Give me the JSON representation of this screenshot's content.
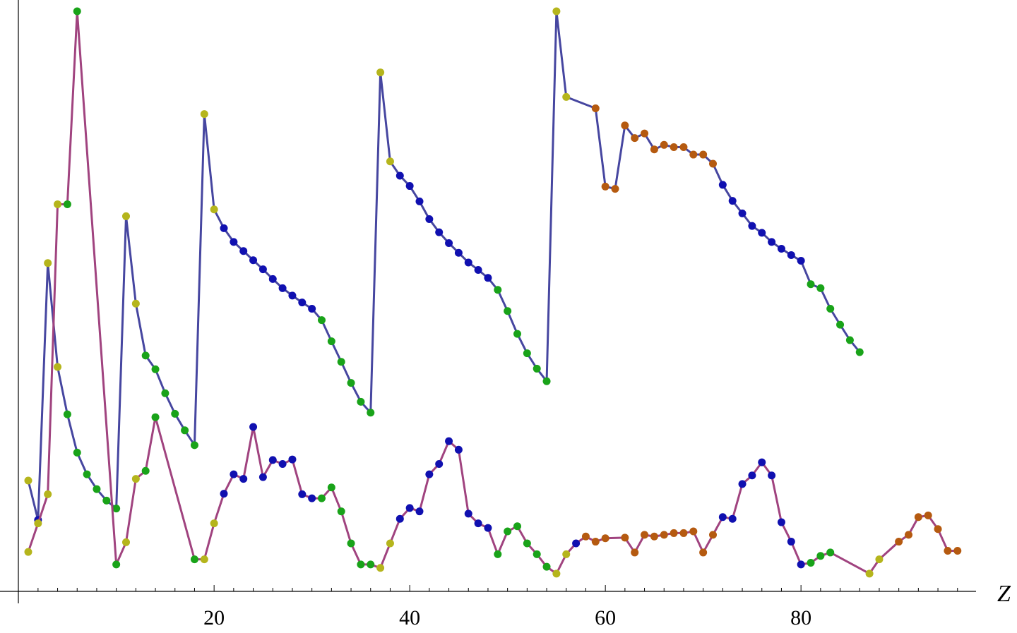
{
  "chart_data": {
    "type": "line",
    "title": "",
    "xlabel": "Z",
    "ylabel": "",
    "xlim": [
      0,
      98
    ],
    "ylim": [
      0,
      1
    ],
    "x_ticks_labeled": [
      20,
      40,
      60,
      80
    ],
    "x_ticks_labels": [
      "20",
      "40",
      "60",
      "80"
    ],
    "x_minor_step": 2,
    "grid": false,
    "legend": "none",
    "colors": {
      "s-block": "#b5b51c",
      "p-block": "#19a319",
      "d-block": "#1010b0",
      "f-block": "#b55a10"
    },
    "series": [
      {
        "line_color": "#4646a0",
        "points": [
          {
            "x": 1,
            "y": 0.178,
            "block": "s-block"
          },
          {
            "x": 2,
            "y": 0.109,
            "block": "d-block"
          },
          {
            "x": 3,
            "y": 0.559,
            "block": "s-block"
          },
          {
            "x": 4,
            "y": 0.377,
            "block": "s-block"
          },
          {
            "x": 5,
            "y": 0.294,
            "block": "p-block"
          },
          {
            "x": 6,
            "y": 0.227,
            "block": "p-block"
          },
          {
            "x": 7,
            "y": 0.189,
            "block": "p-block"
          },
          {
            "x": 8,
            "y": 0.163,
            "block": "p-block"
          },
          {
            "x": 9,
            "y": 0.143,
            "block": "p-block"
          },
          {
            "x": 10,
            "y": 0.129,
            "block": "p-block"
          },
          {
            "x": 11,
            "y": 0.641,
            "block": "s-block"
          },
          {
            "x": 12,
            "y": 0.488,
            "block": "s-block"
          },
          {
            "x": 13,
            "y": 0.397,
            "block": "p-block"
          },
          {
            "x": 14,
            "y": 0.373,
            "block": "p-block"
          },
          {
            "x": 15,
            "y": 0.331,
            "block": "p-block"
          },
          {
            "x": 16,
            "y": 0.295,
            "block": "p-block"
          },
          {
            "x": 17,
            "y": 0.266,
            "block": "p-block"
          },
          {
            "x": 18,
            "y": 0.24,
            "block": "p-block"
          },
          {
            "x": 19,
            "y": 0.82,
            "block": "s-block"
          },
          {
            "x": 20,
            "y": 0.653,
            "block": "s-block"
          },
          {
            "x": 21,
            "y": 0.62,
            "block": "d-block"
          },
          {
            "x": 22,
            "y": 0.596,
            "block": "d-block"
          },
          {
            "x": 23,
            "y": 0.58,
            "block": "d-block"
          },
          {
            "x": 24,
            "y": 0.564,
            "block": "d-block"
          },
          {
            "x": 25,
            "y": 0.548,
            "block": "d-block"
          },
          {
            "x": 26,
            "y": 0.531,
            "block": "d-block"
          },
          {
            "x": 27,
            "y": 0.515,
            "block": "d-block"
          },
          {
            "x": 28,
            "y": 0.502,
            "block": "d-block"
          },
          {
            "x": 29,
            "y": 0.49,
            "block": "d-block"
          },
          {
            "x": 30,
            "y": 0.479,
            "block": "d-block"
          },
          {
            "x": 31,
            "y": 0.459,
            "block": "p-block"
          },
          {
            "x": 32,
            "y": 0.422,
            "block": "p-block"
          },
          {
            "x": 33,
            "y": 0.386,
            "block": "p-block"
          },
          {
            "x": 34,
            "y": 0.349,
            "block": "p-block"
          },
          {
            "x": 35,
            "y": 0.316,
            "block": "p-block"
          },
          {
            "x": 36,
            "y": 0.297,
            "block": "p-block"
          },
          {
            "x": 37,
            "y": 0.893,
            "block": "s-block"
          },
          {
            "x": 38,
            "y": 0.737,
            "block": "s-block"
          },
          {
            "x": 39,
            "y": 0.712,
            "block": "d-block"
          },
          {
            "x": 40,
            "y": 0.694,
            "block": "d-block"
          },
          {
            "x": 41,
            "y": 0.667,
            "block": "d-block"
          },
          {
            "x": 42,
            "y": 0.636,
            "block": "d-block"
          },
          {
            "x": 43,
            "y": 0.613,
            "block": "d-block"
          },
          {
            "x": 44,
            "y": 0.594,
            "block": "d-block"
          },
          {
            "x": 45,
            "y": 0.577,
            "block": "d-block"
          },
          {
            "x": 46,
            "y": 0.56,
            "block": "d-block"
          },
          {
            "x": 47,
            "y": 0.547,
            "block": "d-block"
          },
          {
            "x": 48,
            "y": 0.533,
            "block": "d-block"
          },
          {
            "x": 49,
            "y": 0.512,
            "block": "p-block"
          },
          {
            "x": 50,
            "y": 0.475,
            "block": "p-block"
          },
          {
            "x": 51,
            "y": 0.435,
            "block": "p-block"
          },
          {
            "x": 52,
            "y": 0.401,
            "block": "p-block"
          },
          {
            "x": 53,
            "y": 0.374,
            "block": "p-block"
          },
          {
            "x": 54,
            "y": 0.352,
            "block": "p-block"
          },
          {
            "x": 55,
            "y": 1.0,
            "block": "s-block"
          },
          {
            "x": 56,
            "y": 0.85,
            "block": "s-block"
          },
          {
            "x": 59,
            "y": 0.83,
            "block": "f-block"
          },
          {
            "x": 60,
            "y": 0.693,
            "block": "f-block"
          },
          {
            "x": 61,
            "y": 0.689,
            "block": "f-block"
          },
          {
            "x": 62,
            "y": 0.8,
            "block": "f-block"
          },
          {
            "x": 63,
            "y": 0.778,
            "block": "f-block"
          },
          {
            "x": 64,
            "y": 0.786,
            "block": "f-block"
          },
          {
            "x": 65,
            "y": 0.758,
            "block": "f-block"
          },
          {
            "x": 66,
            "y": 0.766,
            "block": "f-block"
          },
          {
            "x": 67,
            "y": 0.762,
            "block": "f-block"
          },
          {
            "x": 68,
            "y": 0.762,
            "block": "f-block"
          },
          {
            "x": 69,
            "y": 0.749,
            "block": "f-block"
          },
          {
            "x": 70,
            "y": 0.749,
            "block": "f-block"
          },
          {
            "x": 71,
            "y": 0.733,
            "block": "f-block"
          },
          {
            "x": 72,
            "y": 0.696,
            "block": "d-block"
          },
          {
            "x": 73,
            "y": 0.668,
            "block": "d-block"
          },
          {
            "x": 74,
            "y": 0.646,
            "block": "d-block"
          },
          {
            "x": 75,
            "y": 0.624,
            "block": "d-block"
          },
          {
            "x": 76,
            "y": 0.612,
            "block": "d-block"
          },
          {
            "x": 77,
            "y": 0.596,
            "block": "d-block"
          },
          {
            "x": 78,
            "y": 0.584,
            "block": "d-block"
          },
          {
            "x": 79,
            "y": 0.573,
            "block": "d-block"
          },
          {
            "x": 80,
            "y": 0.563,
            "block": "d-block"
          },
          {
            "x": 81,
            "y": 0.522,
            "block": "p-block"
          },
          {
            "x": 82,
            "y": 0.515,
            "block": "p-block"
          },
          {
            "x": 83,
            "y": 0.479,
            "block": "p-block"
          },
          {
            "x": 84,
            "y": 0.451,
            "block": "p-block"
          },
          {
            "x": 85,
            "y": 0.424,
            "block": "p-block"
          },
          {
            "x": 86,
            "y": 0.403,
            "block": "p-block"
          }
        ]
      },
      {
        "line_color": "#a0437f",
        "points": [
          {
            "x": 1,
            "y": 0.053,
            "block": "s-block"
          },
          {
            "x": 2,
            "y": 0.103,
            "block": "s-block"
          },
          {
            "x": 3,
            "y": 0.154,
            "block": "s-block"
          },
          {
            "x": 4,
            "y": 0.662,
            "block": "s-block"
          },
          {
            "x": 5,
            "y": 0.662,
            "block": "p-block"
          },
          {
            "x": 6,
            "y": 1.0,
            "block": "p-block"
          },
          {
            "x": 10,
            "y": 0.031,
            "block": "p-block"
          },
          {
            "x": 11,
            "y": 0.07,
            "block": "s-block"
          },
          {
            "x": 12,
            "y": 0.181,
            "block": "s-block"
          },
          {
            "x": 13,
            "y": 0.195,
            "block": "p-block"
          },
          {
            "x": 14,
            "y": 0.289,
            "block": "p-block"
          },
          {
            "x": 18,
            "y": 0.04,
            "block": "p-block"
          },
          {
            "x": 19,
            "y": 0.04,
            "block": "s-block"
          },
          {
            "x": 20,
            "y": 0.103,
            "block": "s-block"
          },
          {
            "x": 21,
            "y": 0.155,
            "block": "d-block"
          },
          {
            "x": 22,
            "y": 0.189,
            "block": "d-block"
          },
          {
            "x": 23,
            "y": 0.181,
            "block": "d-block"
          },
          {
            "x": 24,
            "y": 0.272,
            "block": "d-block"
          },
          {
            "x": 25,
            "y": 0.184,
            "block": "d-block"
          },
          {
            "x": 26,
            "y": 0.214,
            "block": "d-block"
          },
          {
            "x": 27,
            "y": 0.207,
            "block": "d-block"
          },
          {
            "x": 28,
            "y": 0.215,
            "block": "d-block"
          },
          {
            "x": 29,
            "y": 0.154,
            "block": "d-block"
          },
          {
            "x": 30,
            "y": 0.147,
            "block": "d-block"
          },
          {
            "x": 31,
            "y": 0.147,
            "block": "p-block"
          },
          {
            "x": 32,
            "y": 0.166,
            "block": "p-block"
          },
          {
            "x": 33,
            "y": 0.124,
            "block": "p-block"
          },
          {
            "x": 34,
            "y": 0.068,
            "block": "p-block"
          },
          {
            "x": 35,
            "y": 0.031,
            "block": "p-block"
          },
          {
            "x": 36,
            "y": 0.031,
            "block": "p-block"
          },
          {
            "x": 37,
            "y": 0.025,
            "block": "s-block"
          },
          {
            "x": 38,
            "y": 0.068,
            "block": "s-block"
          },
          {
            "x": 39,
            "y": 0.111,
            "block": "d-block"
          },
          {
            "x": 40,
            "y": 0.13,
            "block": "d-block"
          },
          {
            "x": 41,
            "y": 0.124,
            "block": "d-block"
          },
          {
            "x": 42,
            "y": 0.189,
            "block": "d-block"
          },
          {
            "x": 43,
            "y": 0.207,
            "block": "d-block"
          },
          {
            "x": 44,
            "y": 0.247,
            "block": "d-block"
          },
          {
            "x": 45,
            "y": 0.232,
            "block": "d-block"
          },
          {
            "x": 46,
            "y": 0.12,
            "block": "d-block"
          },
          {
            "x": 47,
            "y": 0.103,
            "block": "d-block"
          },
          {
            "x": 48,
            "y": 0.095,
            "block": "d-block"
          },
          {
            "x": 49,
            "y": 0.049,
            "block": "p-block"
          },
          {
            "x": 50,
            "y": 0.089,
            "block": "p-block"
          },
          {
            "x": 51,
            "y": 0.098,
            "block": "p-block"
          },
          {
            "x": 52,
            "y": 0.068,
            "block": "p-block"
          },
          {
            "x": 53,
            "y": 0.049,
            "block": "p-block"
          },
          {
            "x": 54,
            "y": 0.027,
            "block": "p-block"
          },
          {
            "x": 55,
            "y": 0.015,
            "block": "s-block"
          },
          {
            "x": 56,
            "y": 0.049,
            "block": "s-block"
          },
          {
            "x": 57,
            "y": 0.068,
            "block": "d-block"
          },
          {
            "x": 58,
            "y": 0.08,
            "block": "f-block"
          },
          {
            "x": 59,
            "y": 0.071,
            "block": "f-block"
          },
          {
            "x": 60,
            "y": 0.077,
            "block": "f-block"
          },
          {
            "x": 62,
            "y": 0.078,
            "block": "f-block"
          },
          {
            "x": 63,
            "y": 0.052,
            "block": "f-block"
          },
          {
            "x": 64,
            "y": 0.083,
            "block": "f-block"
          },
          {
            "x": 65,
            "y": 0.08,
            "block": "f-block"
          },
          {
            "x": 66,
            "y": 0.083,
            "block": "f-block"
          },
          {
            "x": 67,
            "y": 0.086,
            "block": "f-block"
          },
          {
            "x": 68,
            "y": 0.086,
            "block": "f-block"
          },
          {
            "x": 69,
            "y": 0.089,
            "block": "f-block"
          },
          {
            "x": 70,
            "y": 0.052,
            "block": "f-block"
          },
          {
            "x": 71,
            "y": 0.083,
            "block": "f-block"
          },
          {
            "x": 72,
            "y": 0.114,
            "block": "d-block"
          },
          {
            "x": 73,
            "y": 0.111,
            "block": "d-block"
          },
          {
            "x": 74,
            "y": 0.172,
            "block": "d-block"
          },
          {
            "x": 75,
            "y": 0.187,
            "block": "d-block"
          },
          {
            "x": 76,
            "y": 0.21,
            "block": "d-block"
          },
          {
            "x": 77,
            "y": 0.187,
            "block": "d-block"
          },
          {
            "x": 78,
            "y": 0.105,
            "block": "d-block"
          },
          {
            "x": 79,
            "y": 0.071,
            "block": "d-block"
          },
          {
            "x": 80,
            "y": 0.031,
            "block": "d-block"
          },
          {
            "x": 81,
            "y": 0.034,
            "block": "p-block"
          },
          {
            "x": 82,
            "y": 0.046,
            "block": "p-block"
          },
          {
            "x": 83,
            "y": 0.052,
            "block": "p-block"
          },
          {
            "x": 87,
            "y": 0.015,
            "block": "s-block"
          },
          {
            "x": 88,
            "y": 0.04,
            "block": "s-block"
          },
          {
            "x": 90,
            "y": 0.071,
            "block": "f-block"
          },
          {
            "x": 91,
            "y": 0.083,
            "block": "f-block"
          },
          {
            "x": 92,
            "y": 0.114,
            "block": "f-block"
          },
          {
            "x": 93,
            "y": 0.117,
            "block": "f-block"
          },
          {
            "x": 94,
            "y": 0.093,
            "block": "f-block"
          },
          {
            "x": 95,
            "y": 0.055,
            "block": "f-block"
          },
          {
            "x": 96,
            "y": 0.055,
            "block": "f-block"
          }
        ]
      }
    ]
  }
}
